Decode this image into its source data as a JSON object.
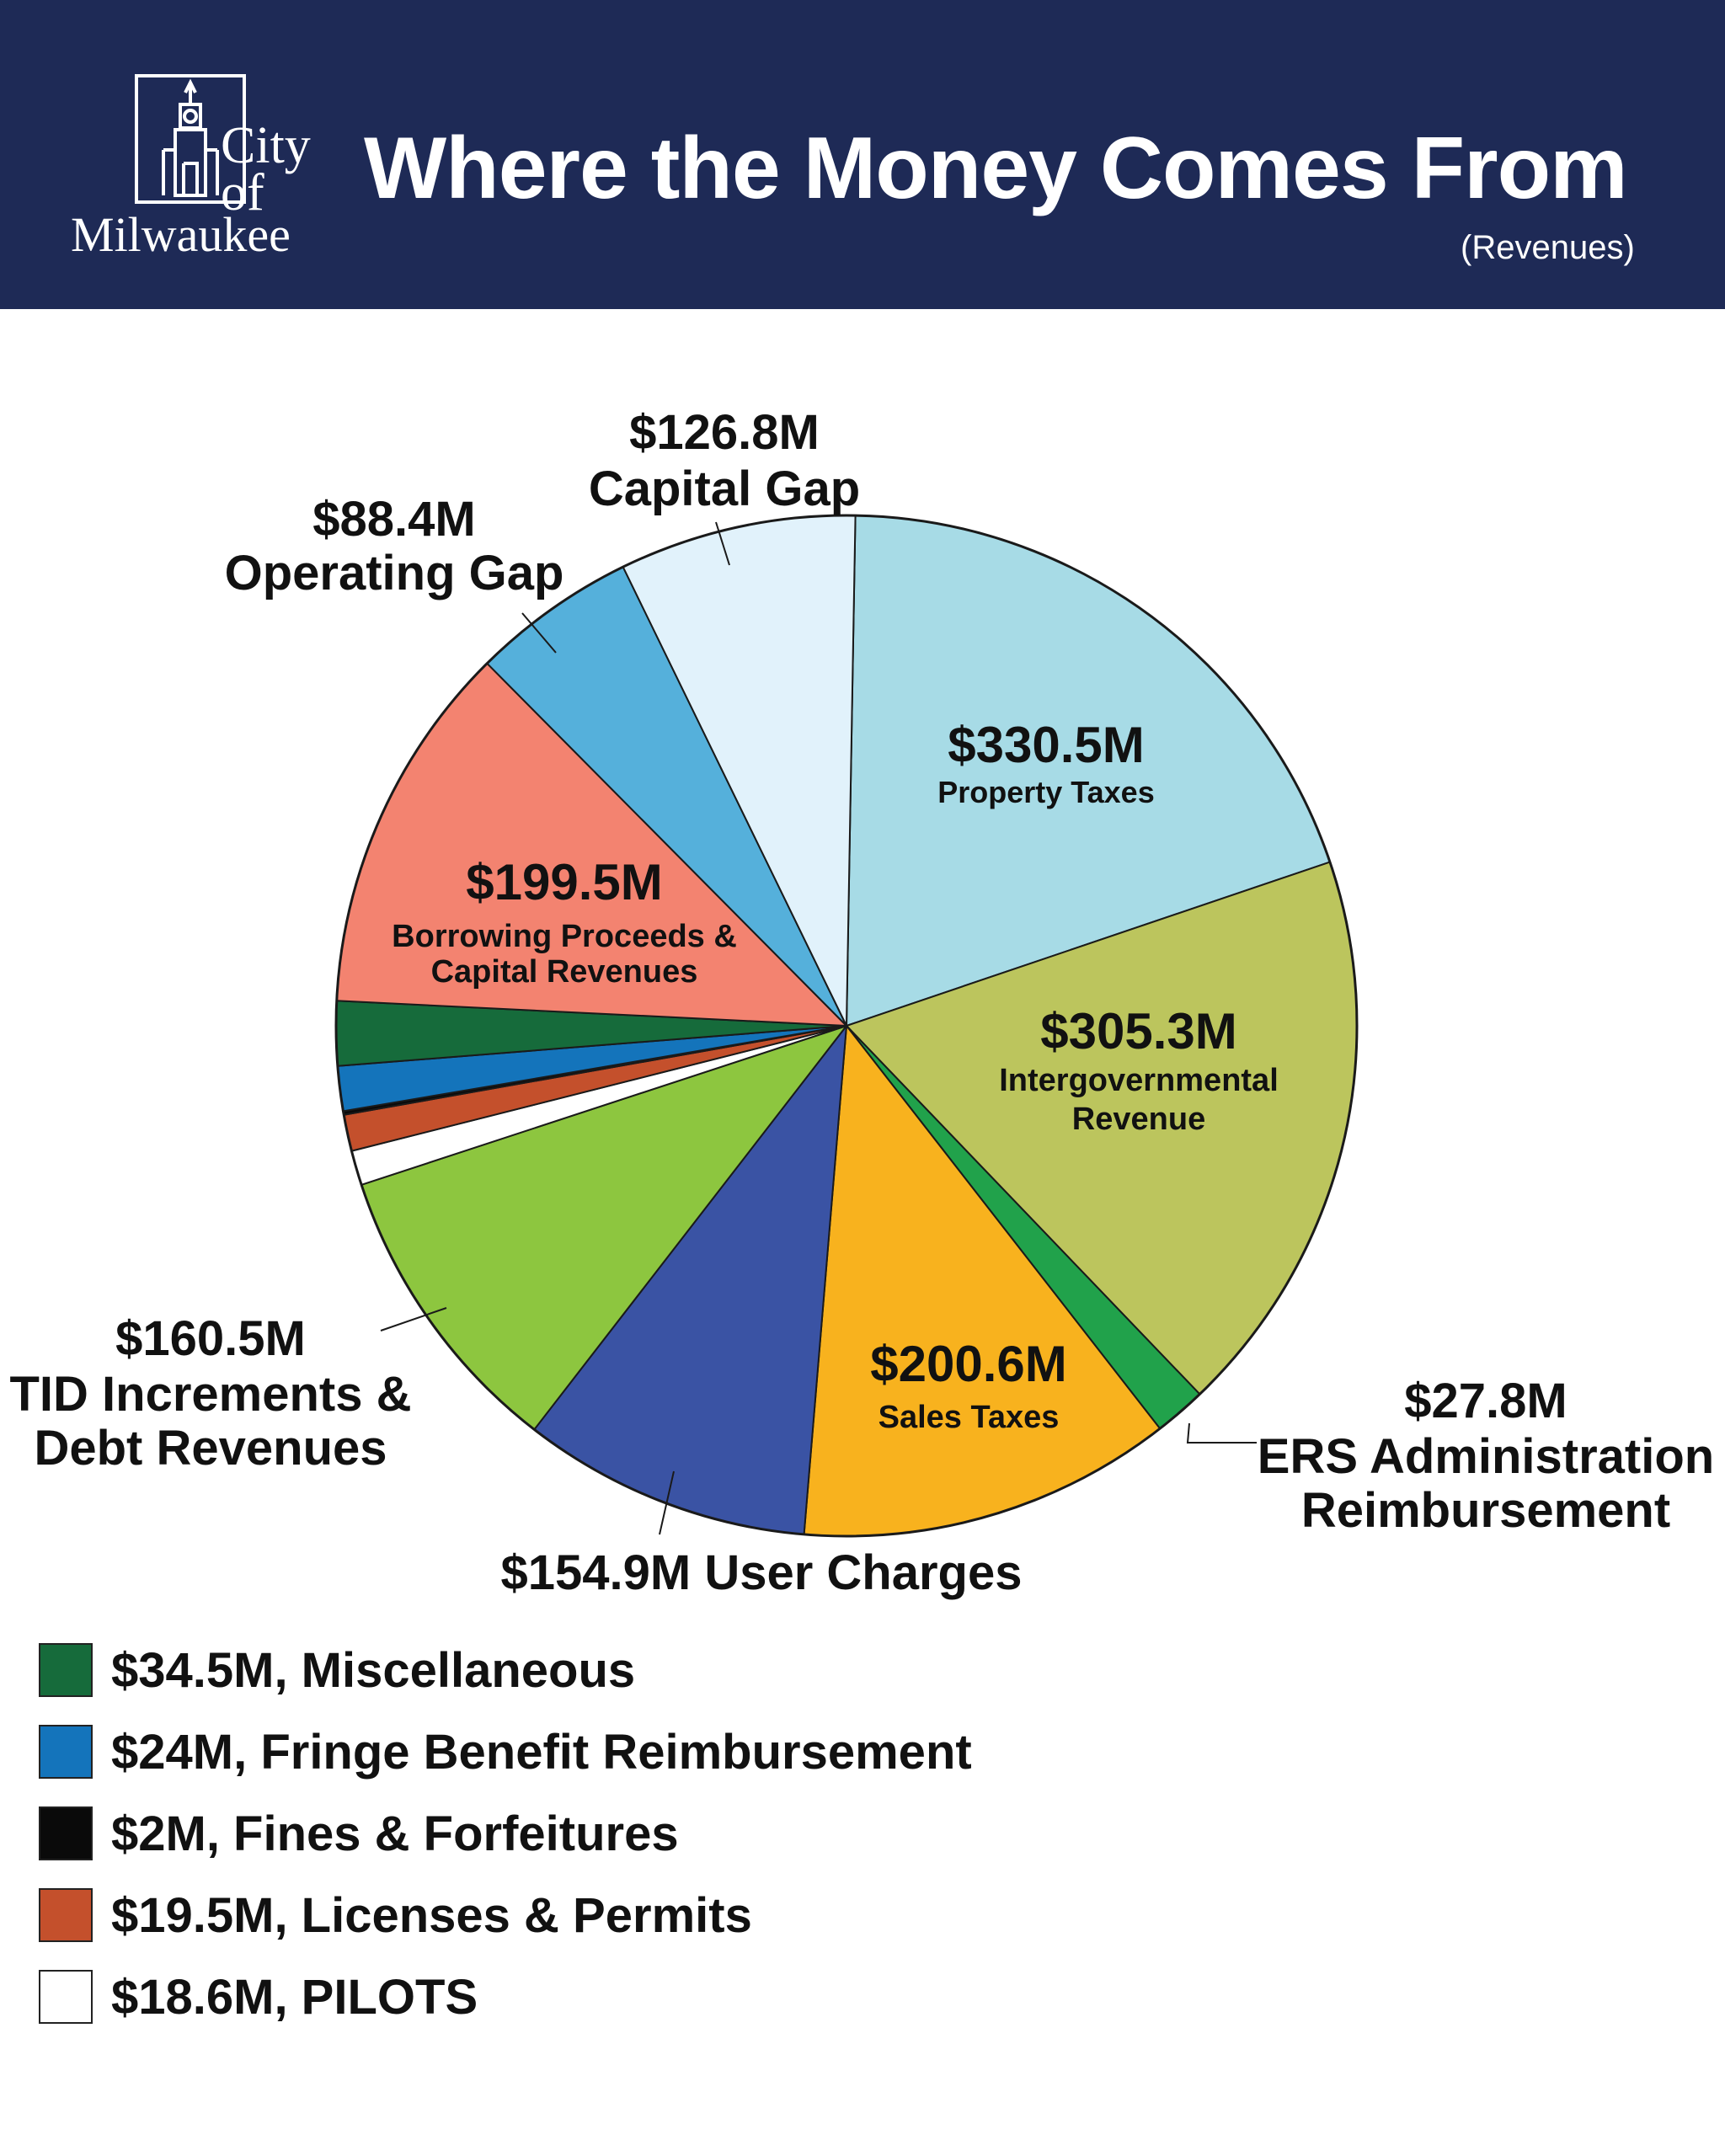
{
  "header": {
    "logo_lines": [
      "City",
      "of",
      "Milwaukee"
    ],
    "title": "Where the Money Comes From",
    "subtitle": "(Revenues)"
  },
  "colors": {
    "header_bg": "#1e2a56",
    "slice_border": "#1a1a1a"
  },
  "chart_data": {
    "type": "pie",
    "title": "Where the Money Comes From",
    "subtitle": "(Revenues)",
    "unit": "$M",
    "slices": [
      {
        "name": "Property Taxes",
        "value": 330.5,
        "value_label": "$330.5M",
        "label_lines": [
          "Property Taxes"
        ],
        "color": "#a7dbe6"
      },
      {
        "name": "Intergovernmental Revenue",
        "value": 305.3,
        "value_label": "$305.3M",
        "label_lines": [
          "Intergovernmental",
          "Revenue"
        ],
        "color": "#bcc55d"
      },
      {
        "name": "ERS Administration Reimbursement",
        "value": 27.8,
        "value_label": "$27.8M",
        "label_lines": [
          "ERS Administration",
          "Reimbursement"
        ],
        "color": "#21a24b"
      },
      {
        "name": "Sales Taxes",
        "value": 200.6,
        "value_label": "$200.6M",
        "label_lines": [
          "Sales Taxes"
        ],
        "color": "#f8b21e"
      },
      {
        "name": "User Charges",
        "value": 154.9,
        "value_label": "$154.9M User Charges",
        "label_lines": [],
        "color": "#3a53a4"
      },
      {
        "name": "TID Increments & Debt Revenues",
        "value": 160.5,
        "value_label": "$160.5M",
        "label_lines": [
          "TID Increments &",
          "Debt Revenues"
        ],
        "color": "#8dc63f"
      },
      {
        "name": "PILOTS",
        "value": 18.6,
        "color": "#ffffff"
      },
      {
        "name": "Licenses & Permits",
        "value": 19.5,
        "color": "#c4502c"
      },
      {
        "name": "Fines & Forfeitures",
        "value": 2,
        "color": "#0a0a0a"
      },
      {
        "name": "Fringe Benefit Reimbursement",
        "value": 24,
        "color": "#1474bb"
      },
      {
        "name": "Miscellaneous",
        "value": 34.5,
        "color": "#166b3b"
      },
      {
        "name": "Borrowing Proceeds & Capital Revenues",
        "value": 199.5,
        "value_label": "$199.5M",
        "label_lines": [
          "Borrowing Proceeds &",
          "Capital Revenues"
        ],
        "color": "#f38370"
      },
      {
        "name": "Operating Gap",
        "value": 88.4,
        "value_label": "$88.4M",
        "label_lines": [
          "Operating Gap"
        ],
        "color": "#55b0db"
      },
      {
        "name": "Capital Gap",
        "value": 126.8,
        "value_label": "$126.8M",
        "label_lines": [
          "Capital Gap"
        ],
        "color": "#e1f2fb"
      }
    ],
    "legend": [
      {
        "label": "$34.5M, Miscellaneous",
        "color": "#166b3b"
      },
      {
        "label": "$24M, Fringe Benefit Reimbursement",
        "color": "#1474bb"
      },
      {
        "label": "$2M, Fines & Forfeitures",
        "color": "#0a0a0a"
      },
      {
        "label": "$19.5M, Licenses & Permits",
        "color": "#c4502c"
      },
      {
        "label": "$18.6M, PILOTS",
        "color": "#ffffff"
      }
    ]
  }
}
